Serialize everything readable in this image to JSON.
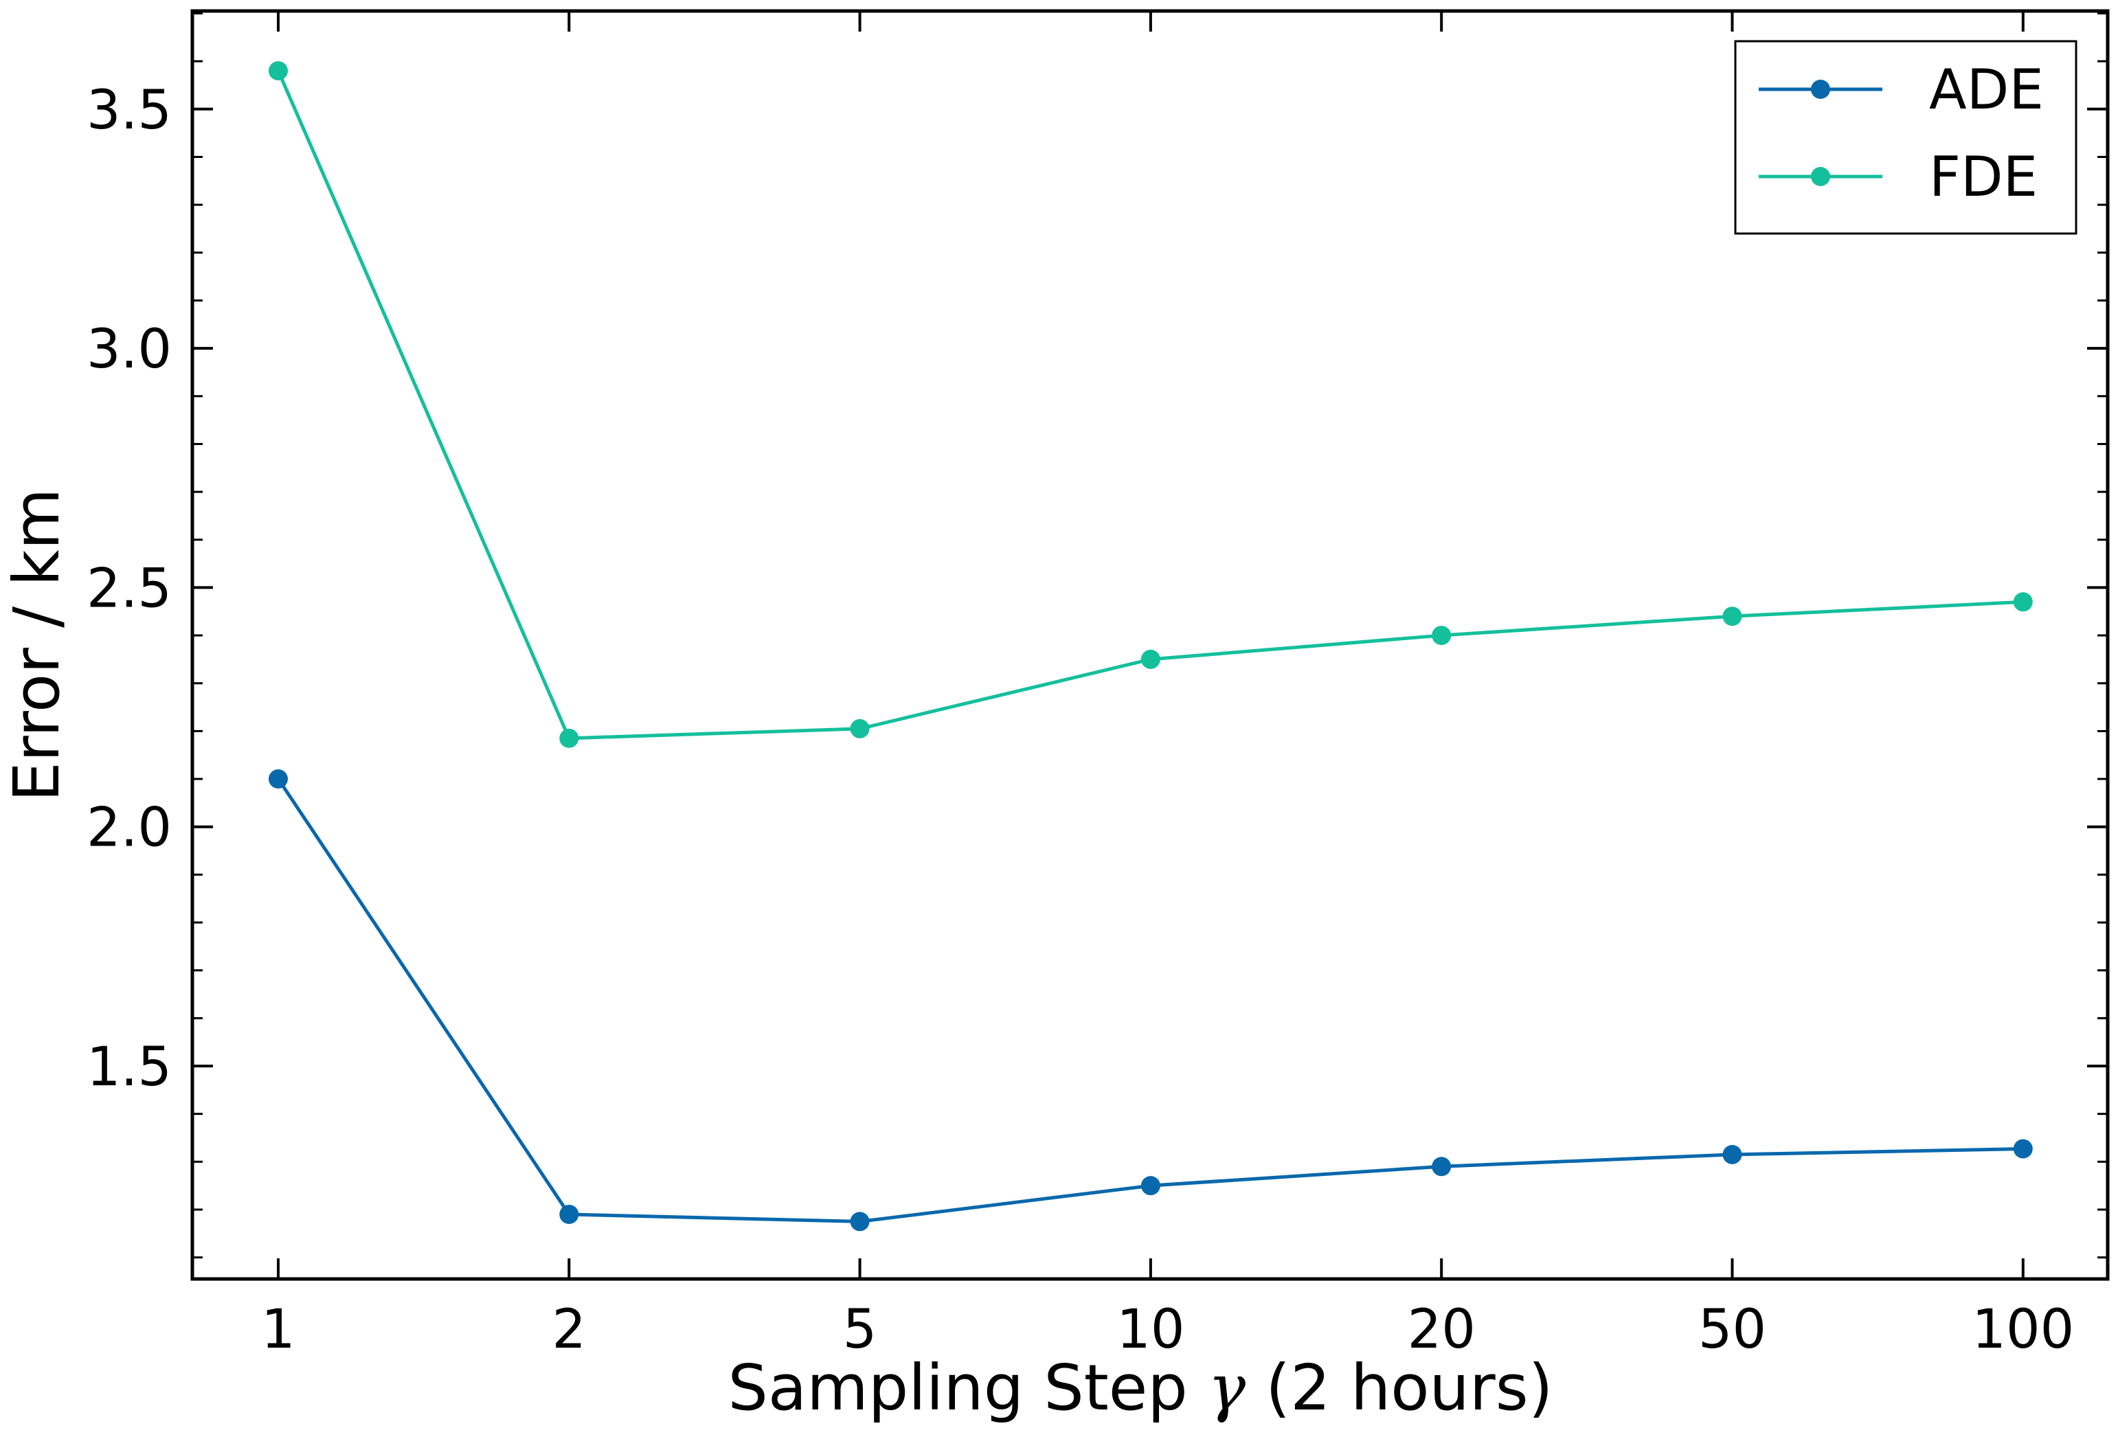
{
  "chart_data": {
    "type": "line",
    "categories": [
      "1",
      "2",
      "5",
      "10",
      "20",
      "50",
      "100"
    ],
    "xlabel_text": "Sampling Step ",
    "xlabel_symbol": "γ",
    "xlabel_suffix": " (2 hours)",
    "ylabel": "Error / km",
    "ylim": [
      1.055,
      3.705
    ],
    "yticks": [
      1.5,
      2.0,
      2.5,
      3.0,
      3.5
    ],
    "ytick_labels": [
      "1.5",
      "2.0",
      "2.5",
      "3.0",
      "3.5"
    ],
    "y_minor_step": 0.1,
    "grid": false,
    "legend_position": "top-right",
    "series": [
      {
        "name": "ADE",
        "color": "#0868ac",
        "values": [
          2.1,
          1.19,
          1.175,
          1.25,
          1.29,
          1.315,
          1.327
        ]
      },
      {
        "name": "FDE",
        "color": "#14bf9c",
        "values": [
          3.58,
          2.185,
          2.205,
          2.35,
          2.4,
          2.44,
          2.47
        ]
      }
    ]
  }
}
